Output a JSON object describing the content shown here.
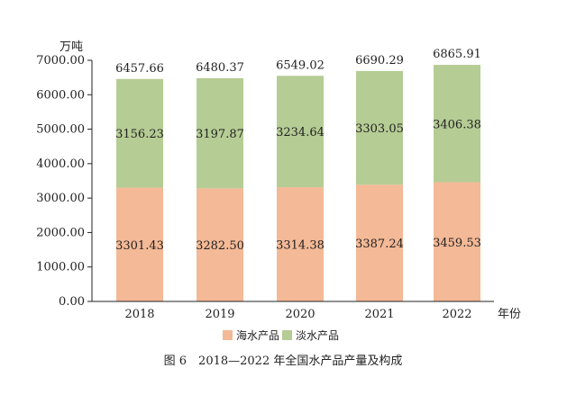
{
  "chart_data": {
    "type": "bar",
    "stacked": true,
    "categories": [
      "2018",
      "2019",
      "2020",
      "2021",
      "2022"
    ],
    "series": [
      {
        "name": "海水产品",
        "values": [
          3301.43,
          3282.5,
          3314.38,
          3387.24,
          3459.53
        ],
        "color": "#F4B996"
      },
      {
        "name": "淡水产品",
        "values": [
          3156.23,
          3197.87,
          3234.64,
          3303.05,
          3406.38
        ],
        "color": "#B5CC94"
      }
    ],
    "totals": [
      6457.66,
      6480.37,
      6549.02,
      6690.29,
      6865.91
    ],
    "ylim": [
      0,
      7000
    ],
    "yticks": [
      "0.00",
      "1000.00",
      "2000.00",
      "3000.00",
      "4000.00",
      "5000.00",
      "6000.00",
      "7000.00"
    ],
    "ylabel": "万吨",
    "xlabel": "年份",
    "legend_position": "bottom",
    "grid": false
  },
  "caption": "图 6　2018—2022 年全国水产品产量及构成"
}
